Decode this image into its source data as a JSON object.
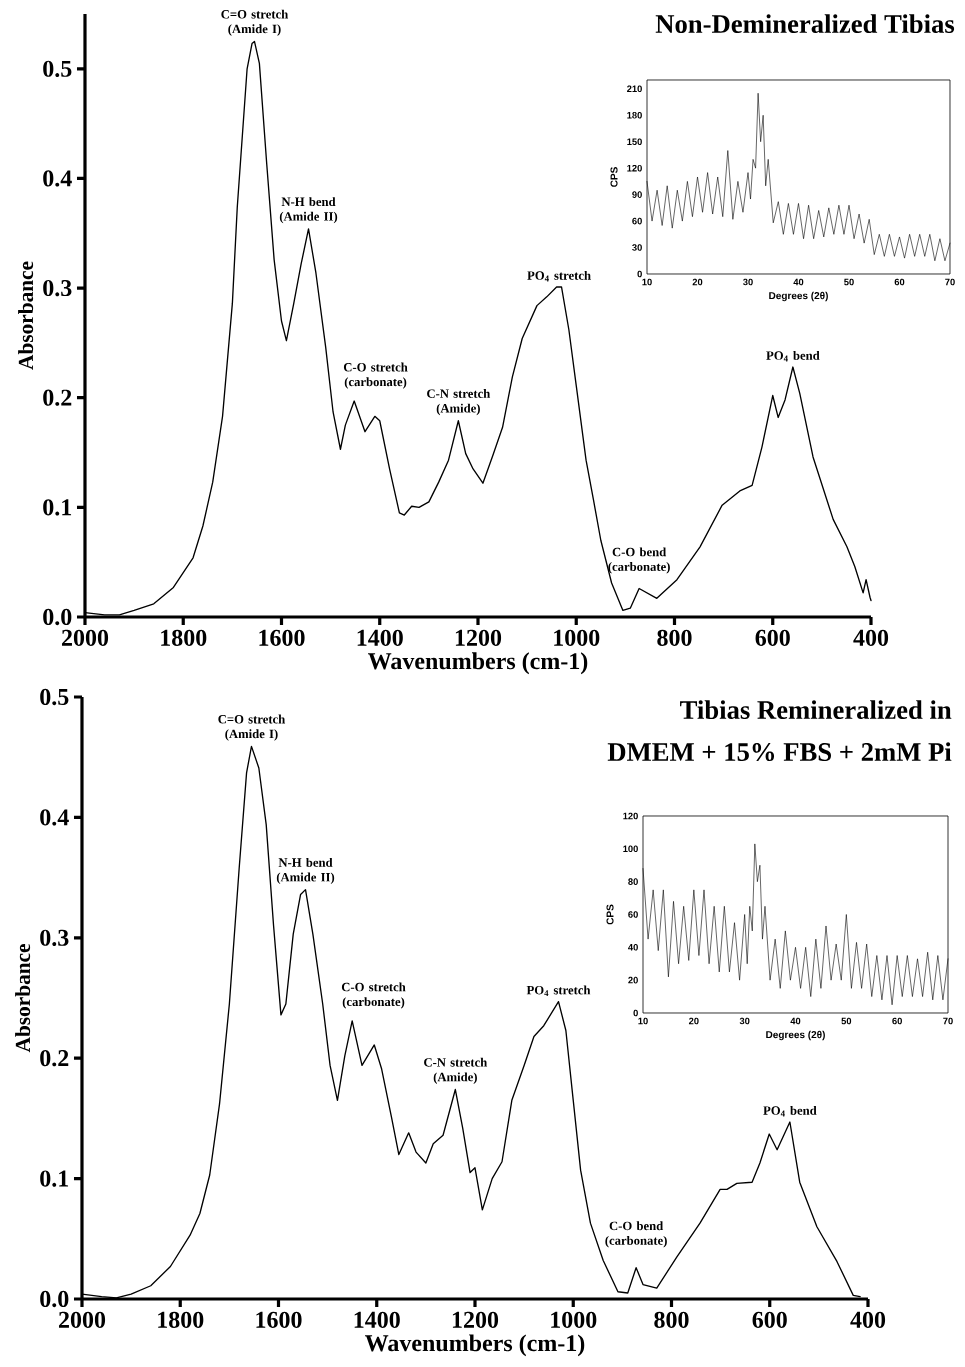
{
  "chart_data": [
    {
      "type": "line",
      "title": "Non-Demineralized Tibias",
      "xlabel": "Wavenumbers (cm-1)",
      "ylabel": "Absorbance",
      "color": "#000000",
      "xlim": [
        2000,
        400
      ],
      "ylim": [
        0,
        0.55
      ],
      "xticks": [
        2000,
        1800,
        1600,
        1400,
        1200,
        1000,
        800,
        600,
        400
      ],
      "yticks": [
        {
          "value": 0,
          "label": "0.0"
        },
        {
          "value": 0.1,
          "label": "0.1"
        },
        {
          "value": 0.2,
          "label": "0.2"
        },
        {
          "value": 0.3,
          "label": "0.3"
        },
        {
          "value": 0.4,
          "label": "0.4"
        },
        {
          "value": 0.5,
          "label": "0.5"
        }
      ],
      "x": [
        2000,
        1960,
        1930,
        1900,
        1860,
        1820,
        1780,
        1760,
        1740,
        1720,
        1700,
        1690,
        1680,
        1670,
        1660,
        1655,
        1645,
        1630,
        1615,
        1600,
        1590,
        1575,
        1560,
        1545,
        1530,
        1510,
        1495,
        1480,
        1470,
        1452,
        1430,
        1410,
        1400,
        1380,
        1360,
        1350,
        1335,
        1320,
        1300,
        1280,
        1260,
        1240,
        1225,
        1210,
        1190,
        1170,
        1150,
        1130,
        1110,
        1080,
        1060,
        1040,
        1030,
        1015,
        1000,
        980,
        965,
        950,
        928,
        905,
        890,
        872,
        836,
        795,
        748,
        703,
        667,
        642,
        622,
        600,
        589,
        575,
        559,
        545,
        518,
        477,
        449,
        433,
        416,
        410,
        402,
        400
      ],
      "values": [
        0.004,
        0.002,
        0.002,
        0.006,
        0.012,
        0.027,
        0.054,
        0.083,
        0.123,
        0.183,
        0.286,
        0.374,
        0.437,
        0.5,
        0.523,
        0.525,
        0.505,
        0.413,
        0.326,
        0.27,
        0.252,
        0.286,
        0.322,
        0.354,
        0.314,
        0.246,
        0.187,
        0.153,
        0.175,
        0.197,
        0.169,
        0.183,
        0.179,
        0.135,
        0.095,
        0.093,
        0.101,
        0.1,
        0.105,
        0.123,
        0.143,
        0.179,
        0.149,
        0.135,
        0.122,
        0.147,
        0.173,
        0.219,
        0.254,
        0.284,
        0.292,
        0.301,
        0.301,
        0.262,
        0.211,
        0.143,
        0.107,
        0.07,
        0.031,
        0.006,
        0.008,
        0.026,
        0.017,
        0.034,
        0.064,
        0.102,
        0.115,
        0.12,
        0.155,
        0.202,
        0.182,
        0.198,
        0.228,
        0.204,
        0.146,
        0.089,
        0.064,
        0.046,
        0.022,
        0.034,
        0.018,
        0.015
      ],
      "annotations": [
        {
          "text": "C=O stretch (Amide I)",
          "x": 1655,
          "y": 0.525
        },
        {
          "text": "N-H bend (Amide II)",
          "x": 1545,
          "y": 0.354
        },
        {
          "text": "C-O stretch (carbonate)",
          "x": 1452,
          "y": 0.197
        },
        {
          "text": "C-N stretch (Amide)",
          "x": 1240,
          "y": 0.179
        },
        {
          "text": "PO$_{4}$ stretch",
          "x": 1035,
          "y": 0.301
        },
        {
          "text": "C-O bend (carbonate)",
          "x": 872,
          "y": 0.026
        },
        {
          "text": "PO$_{4}$ bend",
          "x": 559,
          "y": 0.228
        }
      ]
    },
    {
      "type": "line",
      "xlabel": "Degrees (2θ)",
      "ylabel": "CPS",
      "color": "#000000",
      "xlim": [
        10,
        70
      ],
      "ylim": [
        0,
        220
      ],
      "xticks": [
        10,
        20,
        30,
        40,
        50,
        60,
        70
      ],
      "yticks": [
        0,
        30,
        60,
        90,
        120,
        150,
        180,
        210
      ],
      "x": [
        10,
        11,
        12,
        13,
        14,
        15,
        16,
        17,
        18,
        19,
        20,
        21,
        22,
        23,
        24,
        25,
        26,
        27,
        28,
        29,
        30,
        30.5,
        31,
        31.5,
        32,
        32.5,
        33,
        33.5,
        34,
        35,
        36,
        37,
        38,
        39,
        40,
        41,
        42,
        43,
        44,
        45,
        46,
        47,
        48,
        49,
        50,
        51,
        52,
        53,
        54,
        55,
        56,
        57,
        58,
        59,
        60,
        61,
        62,
        63,
        64,
        65,
        66,
        67,
        68,
        69,
        70
      ],
      "values": [
        105,
        60,
        95,
        55,
        100,
        52,
        95,
        60,
        105,
        65,
        110,
        70,
        115,
        68,
        110,
        65,
        140,
        62,
        105,
        70,
        115,
        85,
        130,
        120,
        205,
        150,
        180,
        100,
        130,
        58,
        82,
        45,
        80,
        45,
        80,
        40,
        78,
        40,
        72,
        42,
        75,
        45,
        78,
        45,
        78,
        40,
        68,
        35,
        62,
        22,
        45,
        20,
        45,
        20,
        42,
        18,
        45,
        20,
        45,
        20,
        45,
        15,
        40,
        15,
        35
      ]
    },
    {
      "type": "line",
      "title": "Tibias Remineralized in",
      "subtitle": "DMEM + 15% FBS + 2mM Pi",
      "xlabel": "Wavenumbers (cm-1)",
      "ylabel": "Absorbance",
      "color": "#000000",
      "xlim": [
        2000,
        400
      ],
      "ylim": [
        0,
        0.5
      ],
      "xticks": [
        2000,
        1800,
        1600,
        1400,
        1200,
        1000,
        800,
        600,
        400
      ],
      "yticks": [
        {
          "value": 0,
          "label": "0.0"
        },
        {
          "value": 0.1,
          "label": "0.1"
        },
        {
          "value": 0.2,
          "label": "0.2"
        },
        {
          "value": 0.3,
          "label": "0.3"
        },
        {
          "value": 0.4,
          "label": "0.4"
        },
        {
          "value": 0.5,
          "label": "0.5"
        }
      ],
      "x": [
        2000,
        1960,
        1930,
        1900,
        1860,
        1820,
        1780,
        1760,
        1740,
        1720,
        1700,
        1680,
        1665,
        1655,
        1640,
        1625,
        1610,
        1595,
        1585,
        1570,
        1555,
        1545,
        1530,
        1510,
        1495,
        1480,
        1465,
        1450,
        1430,
        1405,
        1390,
        1370,
        1355,
        1335,
        1320,
        1300,
        1285,
        1265,
        1240,
        1225,
        1210,
        1200,
        1185,
        1165,
        1145,
        1125,
        1100,
        1080,
        1060,
        1030,
        1015,
        1000,
        985,
        965,
        939,
        909,
        889,
        872,
        858,
        830,
        789,
        742,
        701,
        687,
        667,
        636,
        620,
        601,
        585,
        559,
        539,
        504,
        463,
        430,
        416
      ],
      "values": [
        0.004,
        0.002,
        0.001,
        0.004,
        0.011,
        0.027,
        0.053,
        0.071,
        0.103,
        0.162,
        0.245,
        0.358,
        0.437,
        0.459,
        0.441,
        0.394,
        0.31,
        0.236,
        0.245,
        0.303,
        0.336,
        0.34,
        0.303,
        0.245,
        0.194,
        0.165,
        0.202,
        0.231,
        0.194,
        0.211,
        0.191,
        0.151,
        0.12,
        0.138,
        0.122,
        0.113,
        0.129,
        0.136,
        0.174,
        0.142,
        0.105,
        0.109,
        0.074,
        0.1,
        0.114,
        0.165,
        0.194,
        0.218,
        0.227,
        0.247,
        0.223,
        0.165,
        0.107,
        0.063,
        0.032,
        0.006,
        0.005,
        0.026,
        0.012,
        0.009,
        0.035,
        0.063,
        0.091,
        0.091,
        0.096,
        0.097,
        0.113,
        0.137,
        0.124,
        0.147,
        0.097,
        0.06,
        0.031,
        0.003,
        0.002
      ],
      "annotations": [
        {
          "text": "C=O stretch (Amide I)",
          "x": 1655,
          "y": 0.459
        },
        {
          "text": "N-H bend (Amide II)",
          "x": 1545,
          "y": 0.34
        },
        {
          "text": "C-O stretch (carbonate)",
          "x": 1450,
          "y": 0.231
        },
        {
          "text": "C-N stretch (Amide)",
          "x": 1240,
          "y": 0.174
        },
        {
          "text": "PO$_{4}$ stretch",
          "x": 1030,
          "y": 0.247
        },
        {
          "text": "C-O bend (carbonate)",
          "x": 872,
          "y": 0.026
        },
        {
          "text": "PO$_{4}$ bend",
          "x": 559,
          "y": 0.147
        }
      ]
    },
    {
      "type": "line",
      "xlabel": "Degrees (2θ)",
      "ylabel": "CPS",
      "color": "#000000",
      "xlim": [
        10,
        70
      ],
      "ylim": [
        0,
        120
      ],
      "xticks": [
        10,
        20,
        30,
        40,
        50,
        60,
        70
      ],
      "yticks": [
        0,
        20,
        40,
        60,
        80,
        100,
        120
      ],
      "x": [
        10,
        11,
        12,
        13,
        14,
        15,
        16,
        17,
        18,
        19,
        20,
        21,
        22,
        23,
        24,
        25,
        26,
        27,
        28,
        29,
        30,
        30.5,
        31,
        31.5,
        32,
        32.5,
        33,
        33.5,
        34,
        35,
        36,
        37,
        38,
        39,
        40,
        41,
        42,
        43,
        44,
        45,
        46,
        47,
        48,
        49,
        50,
        51,
        52,
        53,
        54,
        55,
        56,
        57,
        58,
        59,
        60,
        61,
        62,
        63,
        64,
        65,
        66,
        67,
        68,
        69,
        70
      ],
      "values": [
        88,
        45,
        75,
        38,
        75,
        22,
        68,
        30,
        65,
        32,
        75,
        35,
        75,
        30,
        65,
        25,
        65,
        25,
        55,
        20,
        60,
        30,
        65,
        50,
        103,
        80,
        90,
        45,
        65,
        20,
        45,
        15,
        50,
        20,
        40,
        15,
        40,
        10,
        45,
        15,
        53,
        20,
        42,
        20,
        60,
        15,
        43,
        15,
        42,
        10,
        35,
        8,
        35,
        5,
        35,
        10,
        35,
        10,
        33,
        10,
        37,
        8,
        35,
        8,
        33
      ]
    }
  ]
}
